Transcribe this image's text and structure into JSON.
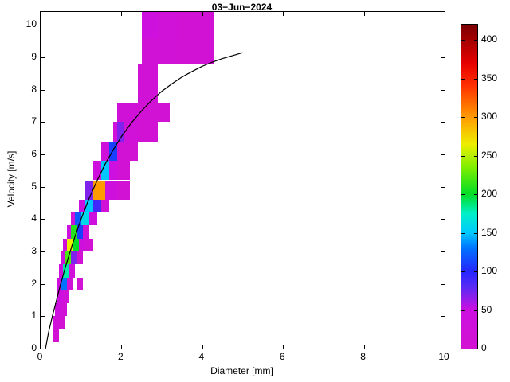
{
  "title": "03−Jun−2024",
  "chart_data": {
    "type": "heatmap",
    "title": "03−Jun−2024",
    "xlabel": "Diameter [mm]",
    "ylabel": "Velocity [m/s]",
    "xlim": [
      0,
      10
    ],
    "ylim": [
      0,
      10.4
    ],
    "xticks": [
      0,
      2,
      4,
      6,
      8,
      10
    ],
    "yticks": [
      0,
      1,
      2,
      3,
      4,
      5,
      6,
      7,
      8,
      9,
      10
    ],
    "grid": false,
    "legend": "none",
    "colorbar": {
      "min": 0,
      "max": 420,
      "ticks": [
        0,
        50,
        100,
        150,
        200,
        250,
        300,
        350,
        400
      ],
      "stops": [
        {
          "v": 0,
          "color": "#d213d2"
        },
        {
          "v": 50,
          "color": "#cc0fe0"
        },
        {
          "v": 80,
          "color": "#5a2bf5"
        },
        {
          "v": 100,
          "color": "#2626ff"
        },
        {
          "v": 130,
          "color": "#0073ff"
        },
        {
          "v": 150,
          "color": "#00c8ff"
        },
        {
          "v": 175,
          "color": "#00f0c8"
        },
        {
          "v": 200,
          "color": "#00dd26"
        },
        {
          "v": 235,
          "color": "#7fee00"
        },
        {
          "v": 265,
          "color": "#eeee00"
        },
        {
          "v": 300,
          "color": "#ff9b00"
        },
        {
          "v": 340,
          "color": "#ff3300"
        },
        {
          "v": 370,
          "color": "#e60000"
        },
        {
          "v": 420,
          "color": "#7a0000"
        }
      ]
    },
    "cells": [
      {
        "d": [
          2.5,
          2.9
        ],
        "v": [
          9.6,
          10.4
        ],
        "n": 40
      },
      {
        "d": [
          2.9,
          3.4
        ],
        "v": [
          9.6,
          10.4
        ],
        "n": 20
      },
      {
        "d": [
          3.4,
          4.3
        ],
        "v": [
          9.6,
          10.4
        ],
        "n": 12
      },
      {
        "d": [
          2.5,
          3.4
        ],
        "v": [
          8.8,
          9.6
        ],
        "n": 18
      },
      {
        "d": [
          3.4,
          4.3
        ],
        "v": [
          8.8,
          9.6
        ],
        "n": 8
      },
      {
        "d": [
          2.4,
          2.9
        ],
        "v": [
          7.6,
          8.8
        ],
        "n": 14
      },
      {
        "d": [
          1.9,
          2.4
        ],
        "v": [
          7.0,
          7.6
        ],
        "n": 22
      },
      {
        "d": [
          2.4,
          3.2
        ],
        "v": [
          7.0,
          7.6
        ],
        "n": 8
      },
      {
        "d": [
          1.8,
          1.9
        ],
        "v": [
          6.4,
          7.0
        ],
        "n": 26
      },
      {
        "d": [
          1.9,
          2.05
        ],
        "v": [
          6.4,
          7.0
        ],
        "n": 70
      },
      {
        "d": [
          2.05,
          2.4
        ],
        "v": [
          6.4,
          7.0
        ],
        "n": 20
      },
      {
        "d": [
          2.4,
          2.9
        ],
        "v": [
          6.4,
          7.0
        ],
        "n": 8
      },
      {
        "d": [
          1.5,
          1.7
        ],
        "v": [
          5.8,
          6.4
        ],
        "n": 30
      },
      {
        "d": [
          1.7,
          1.9
        ],
        "v": [
          5.8,
          6.4
        ],
        "n": 110
      },
      {
        "d": [
          1.9,
          2.4
        ],
        "v": [
          5.8,
          6.4
        ],
        "n": 12
      },
      {
        "d": [
          1.3,
          1.5
        ],
        "v": [
          5.2,
          5.8
        ],
        "n": 35
      },
      {
        "d": [
          1.5,
          1.7
        ],
        "v": [
          5.2,
          5.8
        ],
        "n": 150
      },
      {
        "d": [
          1.7,
          1.9
        ],
        "v": [
          5.2,
          5.8
        ],
        "n": 45
      },
      {
        "d": [
          1.9,
          2.2
        ],
        "v": [
          5.2,
          5.8
        ],
        "n": 10
      },
      {
        "d": [
          1.1,
          1.3
        ],
        "v": [
          4.6,
          5.2
        ],
        "n": 70
      },
      {
        "d": [
          1.3,
          1.6
        ],
        "v": [
          4.6,
          5.2
        ],
        "n": 300
      },
      {
        "d": [
          1.6,
          1.9
        ],
        "v": [
          4.6,
          5.2
        ],
        "n": 35
      },
      {
        "d": [
          1.9,
          2.2
        ],
        "v": [
          4.6,
          5.2
        ],
        "n": 8
      },
      {
        "d": [
          0.95,
          1.1
        ],
        "v": [
          4.2,
          4.6
        ],
        "n": 45
      },
      {
        "d": [
          1.1,
          1.3
        ],
        "v": [
          4.2,
          4.6
        ],
        "n": 150
      },
      {
        "d": [
          1.3,
          1.5
        ],
        "v": [
          4.2,
          4.6
        ],
        "n": 90
      },
      {
        "d": [
          1.5,
          1.7
        ],
        "v": [
          4.2,
          4.6
        ],
        "n": 15
      },
      {
        "d": [
          0.75,
          0.85
        ],
        "v": [
          3.8,
          4.2
        ],
        "n": 25
      },
      {
        "d": [
          0.85,
          1.0
        ],
        "v": [
          3.8,
          4.2
        ],
        "n": 120
      },
      {
        "d": [
          1.0,
          1.2
        ],
        "v": [
          3.8,
          4.2
        ],
        "n": 160
      },
      {
        "d": [
          1.2,
          1.4
        ],
        "v": [
          3.8,
          4.2
        ],
        "n": 40
      },
      {
        "d": [
          0.65,
          0.75
        ],
        "v": [
          3.4,
          3.8
        ],
        "n": 45
      },
      {
        "d": [
          0.75,
          0.9
        ],
        "v": [
          3.4,
          3.8
        ],
        "n": 210
      },
      {
        "d": [
          0.9,
          1.05
        ],
        "v": [
          3.4,
          3.8
        ],
        "n": 110
      },
      {
        "d": [
          1.05,
          1.2
        ],
        "v": [
          3.4,
          3.8
        ],
        "n": 20
      },
      {
        "d": [
          0.55,
          0.65
        ],
        "v": [
          3.0,
          3.4
        ],
        "n": 30
      },
      {
        "d": [
          0.65,
          0.8
        ],
        "v": [
          3.0,
          3.4
        ],
        "n": 265
      },
      {
        "d": [
          0.8,
          0.95
        ],
        "v": [
          3.0,
          3.4
        ],
        "n": 200
      },
      {
        "d": [
          0.95,
          1.1
        ],
        "v": [
          3.0,
          3.4
        ],
        "n": 35
      },
      {
        "d": [
          1.1,
          1.3
        ],
        "v": [
          3.0,
          3.4
        ],
        "n": 8
      },
      {
        "d": [
          0.5,
          0.6
        ],
        "v": [
          2.6,
          3.0
        ],
        "n": 35
      },
      {
        "d": [
          0.6,
          0.75
        ],
        "v": [
          2.6,
          3.0
        ],
        "n": 220
      },
      {
        "d": [
          0.75,
          0.9
        ],
        "v": [
          2.6,
          3.0
        ],
        "n": 70
      },
      {
        "d": [
          0.9,
          1.05
        ],
        "v": [
          2.6,
          3.0
        ],
        "n": 10
      },
      {
        "d": [
          0.45,
          0.55
        ],
        "v": [
          2.2,
          2.6
        ],
        "n": 40
      },
      {
        "d": [
          0.55,
          0.7
        ],
        "v": [
          2.2,
          2.6
        ],
        "n": 180
      },
      {
        "d": [
          0.7,
          0.85
        ],
        "v": [
          2.2,
          2.6
        ],
        "n": 25
      },
      {
        "d": [
          0.4,
          0.5
        ],
        "v": [
          1.8,
          2.2
        ],
        "n": 35
      },
      {
        "d": [
          0.5,
          0.65
        ],
        "v": [
          1.8,
          2.2
        ],
        "n": 130
      },
      {
        "d": [
          0.65,
          0.8
        ],
        "v": [
          1.8,
          2.2
        ],
        "n": 12
      },
      {
        "d": [
          0.9,
          1.05
        ],
        "v": [
          1.8,
          2.2
        ],
        "n": 5
      },
      {
        "d": [
          0.4,
          0.55
        ],
        "v": [
          1.4,
          1.8
        ],
        "n": 45
      },
      {
        "d": [
          0.55,
          0.7
        ],
        "v": [
          1.4,
          1.8
        ],
        "n": 20
      },
      {
        "d": [
          0.35,
          0.5
        ],
        "v": [
          1.0,
          1.4
        ],
        "n": 40
      },
      {
        "d": [
          0.5,
          0.65
        ],
        "v": [
          1.0,
          1.4
        ],
        "n": 15
      },
      {
        "d": [
          0.3,
          0.45
        ],
        "v": [
          0.6,
          1.0
        ],
        "n": 25
      },
      {
        "d": [
          0.45,
          0.6
        ],
        "v": [
          0.6,
          1.0
        ],
        "n": 10
      },
      {
        "d": [
          0.3,
          0.45
        ],
        "v": [
          0.2,
          0.6
        ],
        "n": 8
      }
    ],
    "curve": {
      "name": "terminal-velocity-fit",
      "color": "#000000",
      "points": [
        [
          0.12,
          0.0
        ],
        [
          0.2,
          0.52
        ],
        [
          0.3,
          1.05
        ],
        [
          0.4,
          1.53
        ],
        [
          0.5,
          2.02
        ],
        [
          0.6,
          2.46
        ],
        [
          0.8,
          3.28
        ],
        [
          1.0,
          4.0
        ],
        [
          1.2,
          4.64
        ],
        [
          1.4,
          5.2
        ],
        [
          1.6,
          5.71
        ],
        [
          1.8,
          6.15
        ],
        [
          2.0,
          6.55
        ],
        [
          2.25,
          6.98
        ],
        [
          2.5,
          7.35
        ],
        [
          2.75,
          7.67
        ],
        [
          3.0,
          7.95
        ],
        [
          3.25,
          8.18
        ],
        [
          3.5,
          8.39
        ],
        [
          3.75,
          8.56
        ],
        [
          4.0,
          8.72
        ],
        [
          4.25,
          8.85
        ],
        [
          4.5,
          8.96
        ],
        [
          4.75,
          9.05
        ],
        [
          5.0,
          9.14
        ]
      ]
    }
  },
  "colors": {
    "background": "#ffffff",
    "axis": "#000000"
  }
}
